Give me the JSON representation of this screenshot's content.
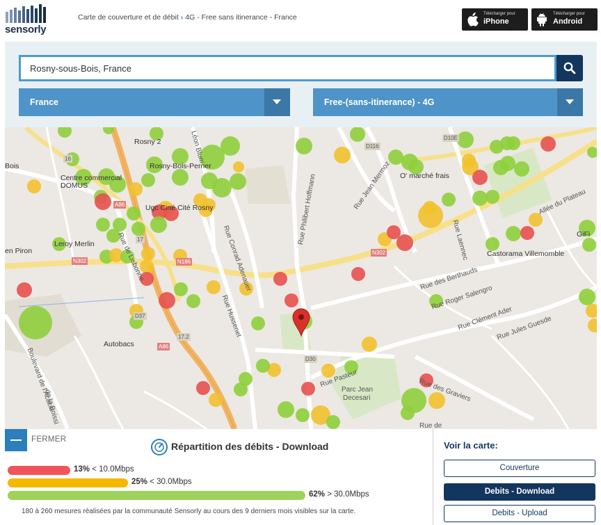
{
  "logo": {
    "text": "sensorly"
  },
  "breadcrumb": {
    "first": "Carte de couverture et de débit",
    "second": "4G - Free sans itinerance - France"
  },
  "stores": {
    "iphone": {
      "small": "Télécharger pour",
      "big": "iPhone",
      "icon": "apple-icon"
    },
    "android": {
      "small": "Télécharger pour",
      "big": "Android",
      "icon": "android-icon"
    }
  },
  "search": {
    "value": "Rosny-sous-Bois, France",
    "icon": "search-icon"
  },
  "selects": {
    "country": "France",
    "operator": "Free-(sans-itinerance) - 4G"
  },
  "map": {
    "pois": [
      "Rosny 2",
      "Centre commercial",
      "DOMUS",
      "Rosny-Bois-Perrier",
      "Ugc Ciné Cité Rosny",
      "Leroy Merlin",
      "Autobacs",
      "O' marché frais",
      "Castorama Villemomble",
      "GiFi",
      "Bois",
      "en Piron"
    ],
    "streets": [
      "Léon Blum",
      "Rue Philibert Hoffmann",
      "Rue Jean Mermoz",
      "Rue Conrad Adenauer",
      "Rue de Lisbonne",
      "Rue Hussenet",
      "Rue des Berthauds",
      "Rue Roger Salengro",
      "Rue Clément Ader",
      "Rue Jules Guesde",
      "Rue Pasteur",
      "Parc Jean",
      "Decesari",
      "Rue des Graviers",
      "Boulevard de l'Acacia",
      "de la Boissi",
      "Rue Laennec",
      "Allée du Plateau",
      "Rue de"
    ],
    "roads": [
      "A86",
      "N186",
      "N302",
      "D37",
      "D30",
      "17.2",
      "16",
      "17",
      "D116",
      "D10E",
      "N302",
      "A86"
    ],
    "colors": {
      "red": "#e8514f",
      "yellow": "#f2c12e",
      "green": "#8fcf3c",
      "pin": "#d9302b"
    },
    "pin_icon": "map-pin-icon"
  },
  "panel": {
    "close_label": "FERMER",
    "speed_icon": "speedometer-icon",
    "title": "Répartition des débits - Download",
    "bars": [
      {
        "percent": "13%",
        "label": "< 10.0Mbps",
        "color": "#f2545b",
        "value": 13
      },
      {
        "percent": "25%",
        "label": "< 30.0Mbps",
        "color": "#f5b800",
        "value": 25
      },
      {
        "percent": "62%",
        "label": "> 30.0Mbps",
        "color": "#9dd35a",
        "value": 62
      }
    ],
    "footnote": "180 à 260 mesures réalisées par la communauté Sensorly au cours des 9 derniers mois visibles sur la carte."
  },
  "view": {
    "title": "Voir la carte:",
    "buttons": [
      "Couverture",
      "Debits - Download",
      "Debits - Upload"
    ],
    "active": "Debits - Download"
  }
}
